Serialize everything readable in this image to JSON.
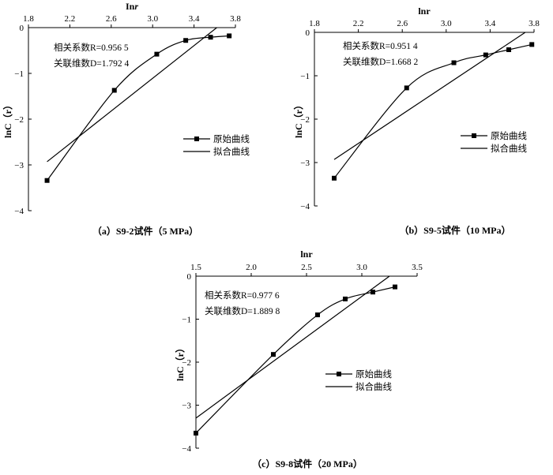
{
  "chart_data": [
    {
      "type": "line",
      "panel_caption": "（a）S9-2试件（5 MPa）",
      "xlabel_prefix": "In",
      "xlabel_var": "r",
      "ylabel": "lnC（r）",
      "xlim": [
        1.8,
        3.8
      ],
      "ylim": [
        -4,
        0
      ],
      "xticks": [
        "1.8",
        "2.2",
        "2.6",
        "3.0",
        "3.4",
        "3.8"
      ],
      "yticks": [
        "0",
        "−1",
        "−2",
        "−3",
        "−4"
      ],
      "annotations": [
        "相关系数R=0.956 5",
        "关联维数D=1.792 4"
      ],
      "series": [
        {
          "name": "原始曲线",
          "marker": "square",
          "x": [
            1.98,
            2.63,
            3.04,
            3.32,
            3.56,
            3.74
          ],
          "y": [
            -3.34,
            -1.37,
            -0.58,
            -0.28,
            -0.21,
            -0.18
          ]
        },
        {
          "name": "拟合曲线",
          "marker": "none",
          "x": [
            1.98,
            3.62
          ],
          "y": [
            -2.93,
            0.0
          ]
        }
      ]
    },
    {
      "type": "line",
      "panel_caption": "（b）S9-5试件（10 MPa）",
      "xlabel_prefix": "lnr",
      "xlabel_var": "",
      "ylabel": "lnC（r）",
      "xlim": [
        1.8,
        3.8
      ],
      "ylim": [
        -4,
        0
      ],
      "xticks": [
        "1.8",
        "2.2",
        "2.6",
        "3.0",
        "3.4",
        "3.8"
      ],
      "yticks": [
        "0",
        "−1",
        "−2",
        "−3",
        "−4"
      ],
      "annotations": [
        "相关系数R=0.951 4",
        "关联维数D=1.668 2"
      ],
      "series": [
        {
          "name": "原始曲线",
          "marker": "square",
          "x": [
            1.98,
            2.64,
            3.07,
            3.36,
            3.57,
            3.78
          ],
          "y": [
            -3.36,
            -1.28,
            -0.7,
            -0.52,
            -0.4,
            -0.28
          ]
        },
        {
          "name": "拟合曲线",
          "marker": "none",
          "x": [
            1.98,
            3.72
          ],
          "y": [
            -2.93,
            0.0
          ]
        }
      ]
    },
    {
      "type": "line",
      "panel_caption": "（c）S9-8试件（20 MPa）",
      "xlabel_prefix": "lnr",
      "xlabel_var": "",
      "ylabel": "lnC（r）",
      "xlim": [
        1.5,
        3.5
      ],
      "ylim": [
        -4,
        0
      ],
      "xticks": [
        "1.5",
        "2.0",
        "2.5",
        "3.0",
        "3.5"
      ],
      "yticks": [
        "0",
        "−1",
        "−2",
        "−3",
        "−4"
      ],
      "annotations": [
        "相关系数R=0.977 6",
        "关联维数D=1.889 8"
      ],
      "series": [
        {
          "name": "原始曲线",
          "marker": "square",
          "x": [
            1.5,
            2.2,
            2.6,
            2.85,
            3.1,
            3.3
          ],
          "y": [
            -3.65,
            -1.82,
            -0.9,
            -0.53,
            -0.37,
            -0.25
          ]
        },
        {
          "name": "拟合曲线",
          "marker": "none",
          "x": [
            1.5,
            3.25
          ],
          "y": [
            -3.3,
            0.0
          ]
        }
      ]
    }
  ]
}
